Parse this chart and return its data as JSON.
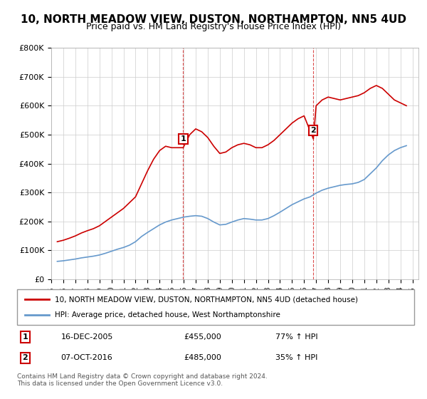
{
  "title": "10, NORTH MEADOW VIEW, DUSTON, NORTHAMPTON, NN5 4UD",
  "subtitle": "Price paid vs. HM Land Registry's House Price Index (HPI)",
  "title_fontsize": 11,
  "subtitle_fontsize": 9,
  "ylim": [
    0,
    800000
  ],
  "yticks": [
    0,
    100000,
    200000,
    300000,
    400000,
    500000,
    600000,
    700000,
    800000
  ],
  "ytick_labels": [
    "£0",
    "£100K",
    "£200K",
    "£300K",
    "£400K",
    "£500K",
    "£600K",
    "£700K",
    "£800K"
  ],
  "xlim_start": 1995.0,
  "xlim_end": 2025.5,
  "red_color": "#cc0000",
  "blue_color": "#6699cc",
  "marker1_year": 2005.96,
  "marker1_price": 455000,
  "marker2_year": 2016.77,
  "marker2_price": 485000,
  "legend_line1": "10, NORTH MEADOW VIEW, DUSTON, NORTHAMPTON, NN5 4UD (detached house)",
  "legend_line2": "HPI: Average price, detached house, West Northamptonshire",
  "sale1_label": "1",
  "sale1_date": "16-DEC-2005",
  "sale1_price": "£455,000",
  "sale1_hpi": "77% ↑ HPI",
  "sale2_label": "2",
  "sale2_date": "07-OCT-2016",
  "sale2_price": "£485,000",
  "sale2_hpi": "35% ↑ HPI",
  "footnote": "Contains HM Land Registry data © Crown copyright and database right 2024.\nThis data is licensed under the Open Government Licence v3.0.",
  "hpi_data": {
    "years": [
      1995.5,
      1996.0,
      1996.5,
      1997.0,
      1997.5,
      1998.0,
      1998.5,
      1999.0,
      1999.5,
      2000.0,
      2000.5,
      2001.0,
      2001.5,
      2002.0,
      2002.5,
      2003.0,
      2003.5,
      2004.0,
      2004.5,
      2005.0,
      2005.5,
      2006.0,
      2006.5,
      2007.0,
      2007.5,
      2008.0,
      2008.5,
      2009.0,
      2009.5,
      2010.0,
      2010.5,
      2011.0,
      2011.5,
      2012.0,
      2012.5,
      2013.0,
      2013.5,
      2014.0,
      2014.5,
      2015.0,
      2015.5,
      2016.0,
      2016.5,
      2017.0,
      2017.5,
      2018.0,
      2018.5,
      2019.0,
      2019.5,
      2020.0,
      2020.5,
      2021.0,
      2021.5,
      2022.0,
      2022.5,
      2023.0,
      2023.5,
      2024.0,
      2024.5
    ],
    "values": [
      62000,
      64000,
      67000,
      70000,
      74000,
      77000,
      80000,
      84000,
      90000,
      97000,
      104000,
      110000,
      118000,
      130000,
      148000,
      162000,
      175000,
      188000,
      198000,
      205000,
      210000,
      215000,
      218000,
      220000,
      218000,
      210000,
      198000,
      188000,
      190000,
      198000,
      205000,
      210000,
      208000,
      205000,
      205000,
      210000,
      220000,
      232000,
      245000,
      258000,
      268000,
      278000,
      285000,
      298000,
      308000,
      315000,
      320000,
      325000,
      328000,
      330000,
      335000,
      345000,
      365000,
      385000,
      410000,
      430000,
      445000,
      455000,
      462000
    ]
  },
  "property_data": {
    "years": [
      1995.5,
      1996.0,
      1996.5,
      1997.0,
      1997.5,
      1998.0,
      1998.5,
      1999.0,
      1999.5,
      2000.0,
      2000.5,
      2001.0,
      2001.5,
      2002.0,
      2002.5,
      2003.0,
      2003.5,
      2004.0,
      2004.5,
      2005.0,
      2005.96,
      2006.5,
      2007.0,
      2007.5,
      2008.0,
      2008.5,
      2009.0,
      2009.5,
      2010.0,
      2010.5,
      2011.0,
      2011.5,
      2012.0,
      2012.5,
      2013.0,
      2013.5,
      2014.0,
      2014.5,
      2015.0,
      2015.5,
      2016.0,
      2016.77,
      2017.0,
      2017.5,
      2018.0,
      2018.5,
      2019.0,
      2019.5,
      2020.0,
      2020.5,
      2021.0,
      2021.5,
      2022.0,
      2022.5,
      2023.0,
      2023.5,
      2024.0,
      2024.5
    ],
    "values": [
      130000,
      135000,
      142000,
      150000,
      160000,
      168000,
      175000,
      185000,
      200000,
      215000,
      230000,
      245000,
      265000,
      285000,
      330000,
      375000,
      415000,
      445000,
      460000,
      455000,
      455000,
      500000,
      520000,
      510000,
      490000,
      460000,
      435000,
      440000,
      455000,
      465000,
      470000,
      465000,
      455000,
      455000,
      465000,
      480000,
      500000,
      520000,
      540000,
      555000,
      565000,
      485000,
      600000,
      620000,
      630000,
      625000,
      620000,
      625000,
      630000,
      635000,
      645000,
      660000,
      670000,
      660000,
      640000,
      620000,
      610000,
      600000
    ]
  }
}
